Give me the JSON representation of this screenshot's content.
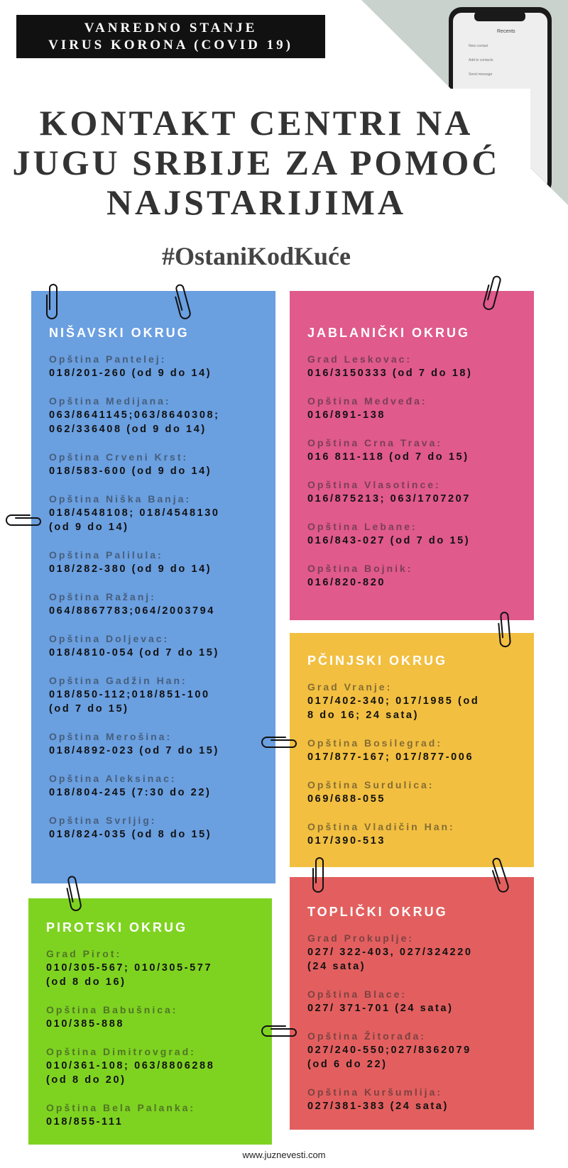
{
  "header": {
    "badge_line1": "VANREDNO STANJE",
    "badge_line2": "VIRUS KORONA (COVID 19)",
    "title_line1": "KONTAKT CENTRI NA",
    "title_line2": "JUGU SRBIJE ZA POMOĆ",
    "title_line3": "NAJSTARIJIMA",
    "hashtag": "#OstaniKodKuće"
  },
  "phone_screen": {
    "title": "Recents",
    "items": [
      "New contact",
      "Add to contacts",
      "Send message"
    ]
  },
  "colors": {
    "nisavski": "#6a9fe0",
    "jablanicki": "#e05a8c",
    "pcinjski": "#f2bf40",
    "toplicki": "#e35f5f",
    "pirotski": "#7ed321"
  },
  "cards": [
    {
      "heading": "NIŠAVSKI OKRUG",
      "entries": [
        {
          "label": "Opština Pantelej:",
          "phone": "018/201-260 (od 9 do 14)"
        },
        {
          "label": "Opština Medijana:",
          "phone": "063/8641145;063/8640308;\n062/336408 (od 9 do 14)"
        },
        {
          "label": "Opština Crveni Krst:",
          "phone": "018/583-600 (od 9 do 14)"
        },
        {
          "label": "Opština Niška Banja:",
          "phone": "018/4548108; 018/4548130\n(od 9 do 14)"
        },
        {
          "label": "Opština Palilula:",
          "phone": "018/282-380 (od 9 do 14)"
        },
        {
          "label": "Opština Ražanj:",
          "phone": "064/8867783;064/2003794"
        },
        {
          "label": "Opština Doljevac:",
          "phone": "018/4810-054 (od 7 do 15)"
        },
        {
          "label": "Opština Gadžin Han:",
          "phone": "018/850-112;018/851-100\n(od 7 do 15)"
        },
        {
          "label": "Opština Merošina:",
          "phone": "018/4892-023 (od 7 do 15)"
        },
        {
          "label": "Opština Aleksinac:",
          "phone": "018/804-245 (7:30 do 22)"
        },
        {
          "label": "Opština Svrljig:",
          "phone": "018/824-035 (od 8 do 15)"
        }
      ]
    },
    {
      "heading": "JABLANIČKI OKRUG",
      "entries": [
        {
          "label": "Grad Leskovac:",
          "phone": "016/3150333 (od 7 do 18)"
        },
        {
          "label": "Opština Medveđa:",
          "phone": "016/891-138"
        },
        {
          "label": "Opština Crna Trava:",
          "phone": "016 811-118 (od 7 do 15)"
        },
        {
          "label": "Opština Vlasotince:",
          "phone": "016/875213; 063/1707207"
        },
        {
          "label": "Opština Lebane:",
          "phone": "016/843-027 (od 7 do 15)"
        },
        {
          "label": "Opština Bojnik:",
          "phone": "016/820-820"
        }
      ]
    },
    {
      "heading": "PČINJSKI OKRUG",
      "entries": [
        {
          "label": "Grad Vranje:",
          "phone": "017/402-340; 017/1985 (od\n8 do 16; 24 sata)"
        },
        {
          "label": "Opština Bosilegrad:",
          "phone": "017/877-167; 017/877-006"
        },
        {
          "label": "Opština Surdulica:",
          "phone": "069/688-055"
        },
        {
          "label": "Opština Vladičin Han:",
          "phone": "017/390-513"
        }
      ]
    },
    {
      "heading": "TOPLIČKI OKRUG",
      "entries": [
        {
          "label": "Grad Prokuplje:",
          "phone": "027/ 322-403, 027/324220\n(24 sata)"
        },
        {
          "label": "Opština Blace:",
          "phone": "027/ 371-701 (24 sata)"
        },
        {
          "label": "Opština Žitorađa:",
          "phone": "027/240-550;027/8362079\n(od 6 do 22)"
        },
        {
          "label": "Opština Kuršumlija:",
          "phone": "027/381-383 (24 sata)"
        }
      ]
    },
    {
      "heading": "PIROTSKI OKRUG",
      "entries": [
        {
          "label": "Grad Pirot:",
          "phone": "010/305-567; 010/305-577\n(od 8 do 16)"
        },
        {
          "label": "Opština Babušnica:",
          "phone": "010/385-888"
        },
        {
          "label": "Opština Dimitrovgrad:",
          "phone": "010/361-108; 063/8806288\n(od 8 do 20)"
        },
        {
          "label": "Opština Bela Palanka:",
          "phone": "018/855-111"
        }
      ]
    }
  ],
  "footer": "www.juznevesti.com"
}
